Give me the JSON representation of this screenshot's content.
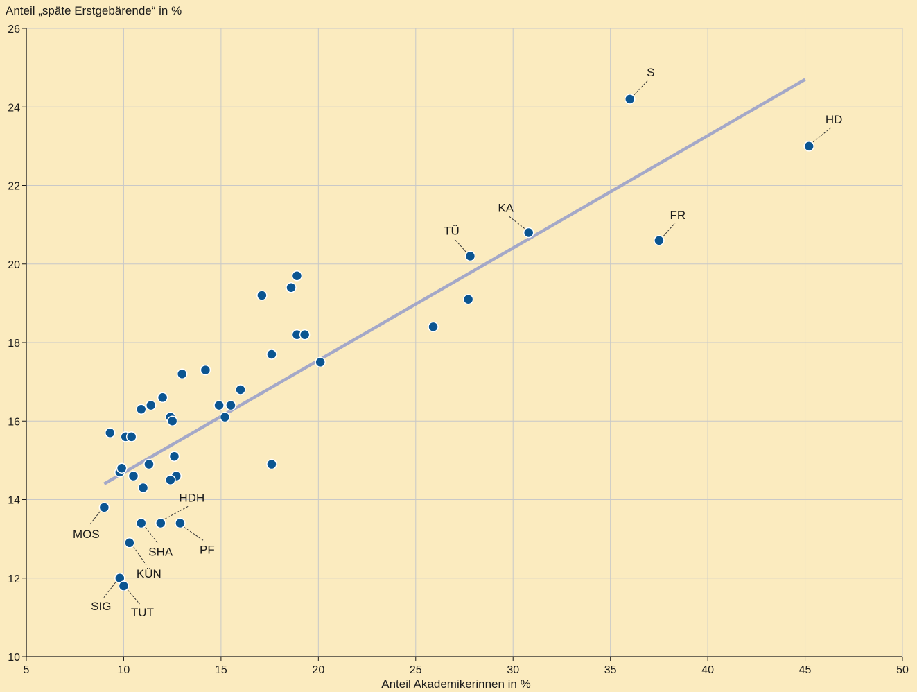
{
  "chart_data": {
    "type": "scatter",
    "title": "",
    "xlabel": "Anteil Akademikerinnen in %",
    "ylabel": "Anteil „späte Erstgebärende“ in %",
    "xlim": [
      5,
      50
    ],
    "ylim": [
      10,
      26
    ],
    "xticks": [
      5,
      10,
      15,
      20,
      25,
      30,
      35,
      40,
      45,
      50
    ],
    "yticks": [
      10,
      12,
      14,
      16,
      18,
      20,
      22,
      24,
      26
    ],
    "grid": true,
    "colors": {
      "background": "#fbebbf",
      "grid": "#c8c8c8",
      "axis": "#1a1a1a",
      "point": "#0b5591",
      "point_edge": "#ffffff",
      "trend": "#a4a8c8"
    },
    "trendline": {
      "x": [
        9.0,
        45.0
      ],
      "y": [
        14.4,
        24.7
      ]
    },
    "points": [
      {
        "x": 36.0,
        "y": 24.2,
        "label": "S"
      },
      {
        "x": 45.2,
        "y": 23.0,
        "label": "HD"
      },
      {
        "x": 37.5,
        "y": 20.6,
        "label": "FR"
      },
      {
        "x": 30.8,
        "y": 20.8,
        "label": "KA"
      },
      {
        "x": 27.8,
        "y": 20.2,
        "label": "TÜ"
      },
      {
        "x": 27.7,
        "y": 19.1,
        "label": ""
      },
      {
        "x": 25.9,
        "y": 18.4,
        "label": ""
      },
      {
        "x": 20.1,
        "y": 17.5,
        "label": ""
      },
      {
        "x": 18.9,
        "y": 19.7,
        "label": ""
      },
      {
        "x": 18.6,
        "y": 19.4,
        "label": ""
      },
      {
        "x": 17.1,
        "y": 19.2,
        "label": ""
      },
      {
        "x": 18.9,
        "y": 18.2,
        "label": ""
      },
      {
        "x": 19.3,
        "y": 18.2,
        "label": ""
      },
      {
        "x": 17.6,
        "y": 17.7,
        "label": ""
      },
      {
        "x": 17.6,
        "y": 14.9,
        "label": ""
      },
      {
        "x": 16.0,
        "y": 16.8,
        "label": ""
      },
      {
        "x": 14.2,
        "y": 17.3,
        "label": ""
      },
      {
        "x": 14.9,
        "y": 16.4,
        "label": ""
      },
      {
        "x": 15.5,
        "y": 16.4,
        "label": ""
      },
      {
        "x": 15.2,
        "y": 16.1,
        "label": ""
      },
      {
        "x": 13.0,
        "y": 17.2,
        "label": ""
      },
      {
        "x": 12.0,
        "y": 16.6,
        "label": ""
      },
      {
        "x": 11.4,
        "y": 16.4,
        "label": ""
      },
      {
        "x": 10.9,
        "y": 16.3,
        "label": ""
      },
      {
        "x": 12.4,
        "y": 16.1,
        "label": ""
      },
      {
        "x": 12.5,
        "y": 16.0,
        "label": ""
      },
      {
        "x": 9.3,
        "y": 15.7,
        "label": ""
      },
      {
        "x": 10.1,
        "y": 15.6,
        "label": ""
      },
      {
        "x": 10.4,
        "y": 15.6,
        "label": ""
      },
      {
        "x": 12.6,
        "y": 15.1,
        "label": ""
      },
      {
        "x": 11.3,
        "y": 14.9,
        "label": ""
      },
      {
        "x": 9.8,
        "y": 14.7,
        "label": ""
      },
      {
        "x": 9.9,
        "y": 14.8,
        "label": ""
      },
      {
        "x": 10.5,
        "y": 14.6,
        "label": ""
      },
      {
        "x": 12.7,
        "y": 14.6,
        "label": ""
      },
      {
        "x": 12.4,
        "y": 14.5,
        "label": ""
      },
      {
        "x": 11.0,
        "y": 14.3,
        "label": ""
      },
      {
        "x": 9.0,
        "y": 13.8,
        "label": "MOS"
      },
      {
        "x": 10.9,
        "y": 13.4,
        "label": "SHA"
      },
      {
        "x": 11.9,
        "y": 13.4,
        "label": "HDH"
      },
      {
        "x": 12.9,
        "y": 13.4,
        "label": "PF"
      },
      {
        "x": 10.3,
        "y": 12.9,
        "label": "KÜN"
      },
      {
        "x": 9.8,
        "y": 12.0,
        "label": "SIG"
      },
      {
        "x": 10.0,
        "y": 11.8,
        "label": "TUT"
      }
    ]
  }
}
